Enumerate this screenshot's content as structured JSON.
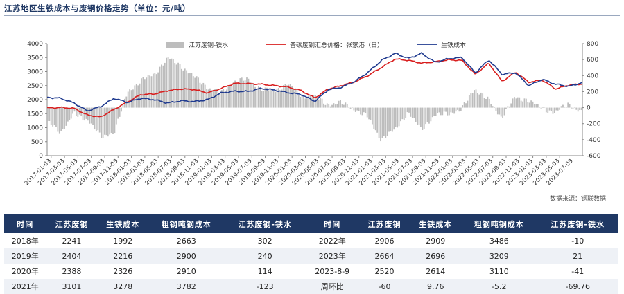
{
  "title": "江苏地区生铁成本与废钢价格走势（单位：元/吨）",
  "source": "数据来源：钢联数据",
  "colors": {
    "bar": "#bdbdbd",
    "scrap": "#d81e1e",
    "iron": "#1f3a8f",
    "header": "#1f3864"
  },
  "chart_data": {
    "type": "line",
    "left_axis": {
      "ylim": [
        0,
        4000
      ],
      "ticks": [
        "0",
        "500",
        "1000",
        "1500",
        "2000",
        "2500",
        "3000",
        "3500",
        "4000"
      ]
    },
    "right_axis": {
      "ylim": [
        -600,
        800
      ],
      "ticks": [
        "-600",
        "-400",
        "-200",
        "0",
        "200",
        "400",
        "600",
        "800"
      ]
    },
    "x_ticks": [
      "2017-01-03",
      "2017-03-03",
      "2017-05-03",
      "2017-07-03",
      "2017-09-03",
      "2017-11-03",
      "2018-01-03",
      "2018-03-03",
      "2018-05-03",
      "2018-07-03",
      "2018-09-03",
      "2018-11-03",
      "2019-01-03",
      "2019-03-03",
      "2019-05-03",
      "2019-07-03",
      "2019-09-03",
      "2019-11-03",
      "2020-01-03",
      "2020-03-03",
      "2020-05-03",
      "2020-07-03",
      "2020-09-03",
      "2020-11-03",
      "2021-01-03",
      "2021-03-03",
      "2021-05-03",
      "2021-07-03",
      "2021-09-03",
      "2021-11-03",
      "2022-01-03",
      "2022-03-03",
      "2022-05-03",
      "2022-07-03",
      "2022-09-03",
      "2022-11-03",
      "2023-01-03",
      "2023-03-03",
      "2023-05-03",
      "2023-07-03"
    ],
    "legend": [
      "江苏废钢-铁水",
      "普碳废钢汇总价格：张家港（日）",
      "生铁成本"
    ],
    "series": [
      {
        "name": "普碳废钢汇总价格：张家港（日）",
        "axis": "left",
        "values": [
          1700,
          1720,
          1690,
          1450,
          1380,
          1650,
          1920,
          2180,
          2200,
          2320,
          2380,
          2360,
          2240,
          2400,
          2580,
          2570,
          2550,
          2500,
          2450,
          2320,
          2060,
          2380,
          2500,
          2640,
          2860,
          3150,
          3450,
          3400,
          3300,
          3350,
          3420,
          3400,
          2900,
          3300,
          2650,
          2980,
          2620,
          2700,
          2380,
          2520,
          2560
        ]
      },
      {
        "name": "生铁成本",
        "axis": "left",
        "values": [
          2080,
          2050,
          1880,
          1600,
          1750,
          2050,
          1900,
          2050,
          2000,
          1880,
          1960,
          1930,
          2000,
          2240,
          2300,
          2290,
          2400,
          2340,
          2250,
          2180,
          1940,
          2350,
          2440,
          2650,
          2980,
          3400,
          3650,
          3470,
          3650,
          3330,
          3460,
          3500,
          2950,
          3420,
          2900,
          2960,
          2500,
          2720,
          2550,
          2470,
          2610
        ]
      },
      {
        "name": "江苏废钢-铁水",
        "axis": "right",
        "values": [
          -180,
          -300,
          -80,
          -150,
          -370,
          -300,
          200,
          340,
          420,
          620,
          520,
          380,
          250,
          180,
          330,
          350,
          230,
          210,
          300,
          150,
          140,
          40,
          60,
          -20,
          -120,
          -400,
          -280,
          -60,
          -270,
          -100,
          -70,
          -30,
          240,
          100,
          -120,
          120,
          100,
          -10,
          -60,
          40,
          -50
        ]
      }
    ]
  },
  "table": {
    "headers": [
      "时间",
      "江苏废钢",
      "生铁成本",
      "粗钢吨钢成本",
      "江苏废钢-铁水",
      "时间",
      "江苏废钢",
      "生铁成本",
      "粗钢吨钢成本",
      "江苏废钢-铁水"
    ],
    "rows": [
      [
        "2018年",
        "2241",
        "1992",
        "2663",
        "302",
        "2022年",
        "2906",
        "2909",
        "3486",
        "-10"
      ],
      [
        "2019年",
        "2404",
        "2216",
        "2900",
        "240",
        "2023年",
        "2664",
        "2696",
        "3209",
        "21"
      ],
      [
        "2020年",
        "2388",
        "2326",
        "2910",
        "114",
        "2023-8-9",
        "2520",
        "2614",
        "3110",
        "-41"
      ],
      [
        "2021年",
        "3101",
        "3278",
        "3782",
        "-123",
        "周环比",
        "-60",
        "9.76",
        "-5.2",
        "-69.76"
      ]
    ]
  }
}
